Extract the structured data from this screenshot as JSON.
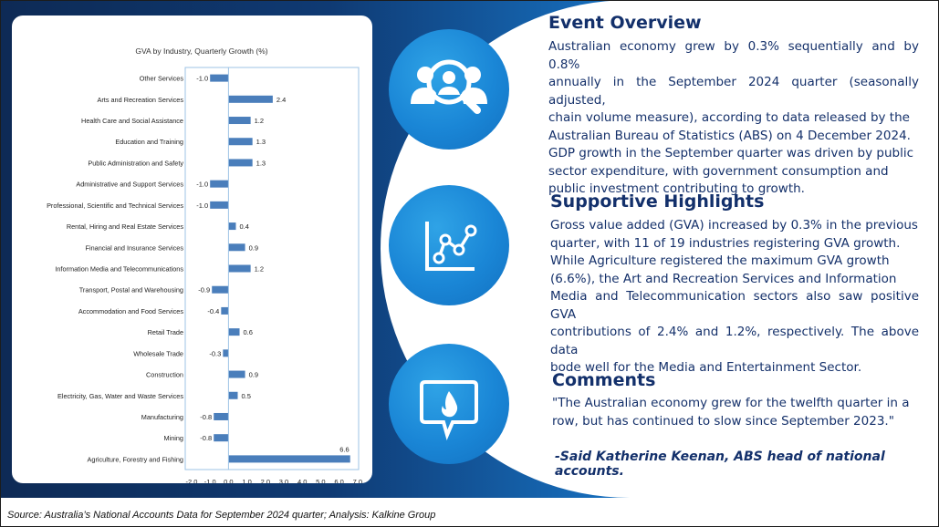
{
  "chart_data": {
    "type": "bar",
    "orientation": "horizontal",
    "title": "GVA by Industry, Quarterly Growth (%)",
    "xlim": [
      -2.0,
      7.0
    ],
    "xticks": [
      "-2.0",
      "-1.0",
      "0.0",
      "1.0",
      "2.0",
      "3.0",
      "4.0",
      "5.0",
      "6.0",
      "7.0"
    ],
    "categories": [
      "Other Services",
      "Arts and Recreation Services",
      "Health Care and Social Assistance",
      "Education and Training",
      "Public Administration and Safety",
      "Administrative and Support Services",
      "Professional, Scientific and Technical Services",
      "Rental, Hiring and Real Estate Services",
      "Financial and Insurance Services",
      "Information Media and Telecommunications",
      "Transport, Postal and Warehousing",
      "Accommodation and Food Services",
      "Retail Trade",
      "Wholesale Trade",
      "Construction",
      "Electricity, Gas, Water and Waste Services",
      "Manufacturing",
      "Mining",
      "Agriculture, Forestry and Fishing"
    ],
    "values": [
      -1.0,
      2.4,
      1.2,
      1.3,
      1.3,
      -1.0,
      -1.0,
      0.4,
      0.9,
      1.2,
      -0.9,
      -0.4,
      0.6,
      -0.3,
      0.9,
      0.5,
      -0.8,
      -0.8,
      6.6
    ],
    "data_labels": [
      "-1.0",
      "2.4",
      "1.2",
      "1.3",
      "1.3",
      "-1.0",
      "-1.0",
      "0.4",
      "0.9",
      "1.2",
      "-0.9",
      "-0.4",
      "0.6",
      "-0.3",
      "0.9",
      "0.5",
      "-0.8",
      "-0.8",
      "6.6"
    ],
    "bar_color": "#4a7ebb"
  },
  "sections": {
    "event": {
      "title": "Event Overview",
      "lines": [
        "Australian economy grew by 0.3% sequentially and by 0.8%",
        "annually in the September 2024 quarter (seasonally adjusted,",
        "chain volume measure), according to data released by the",
        "Australian Bureau of Statistics (ABS) on 4 December 2024.",
        "GDP growth in the September quarter was driven by public",
        "sector expenditure, with government consumption and",
        "public investment contributing to growth."
      ],
      "icon": "user-search-icon"
    },
    "highlights": {
      "title": "Supportive Highlights",
      "lines": [
        "Gross value added (GVA) increased by 0.3% in the previous",
        "quarter, with 11 of 19 industries registering GVA growth.",
        "While Agriculture registered the maximum GVA growth",
        "(6.6%), the Art and Recreation Services and Information",
        "Media and Telecommunication sectors also saw positive GVA",
        "contributions of 2.4% and 1.2%, respectively. The above data",
        "bode well for the Media and Entertainment Sector."
      ],
      "icon": "line-chart-icon"
    },
    "comments": {
      "title": "Comments",
      "lines": [
        "\"The Australian economy grew for the twelfth quarter in a",
        "row, but has continued to slow since September 2023.\""
      ],
      "author": "-Said Katherine Keenan, ABS head of national accounts.",
      "icon": "speech-bubble-flame-icon"
    }
  },
  "footer": {
    "source": "Source: Australia’s National Accounts Data for September 2024 quarter; Analysis: Kalkine Group"
  },
  "colors": {
    "navy_text": "#13306b",
    "icon_blue": "#1a86d6",
    "background_dark": "#0e2a55",
    "background_light": "#2aa2e8"
  }
}
